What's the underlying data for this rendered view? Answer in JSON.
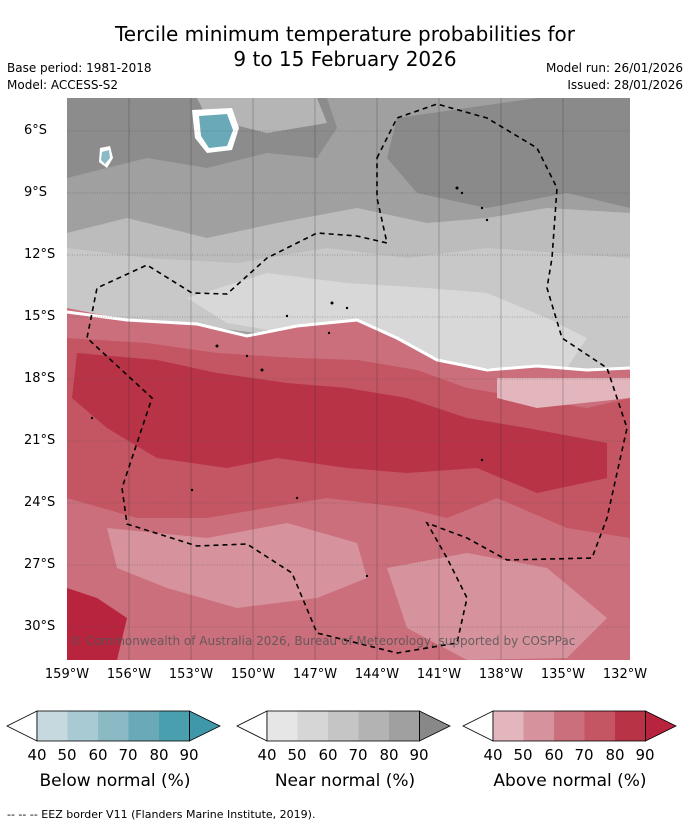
{
  "title_line1": "Tercile minimum temperature probabilities for",
  "title_line2": "9 to 15 February 2026",
  "base_period": "Base period: 1981-2018",
  "model": "Model: ACCESS-S2",
  "model_run": "Model run: 26/01/2026",
  "issued": "Issued: 28/01/2026",
  "lat_labels": [
    "6°S",
    "9°S",
    "12°S",
    "15°S",
    "18°S",
    "21°S",
    "24°S",
    "27°S",
    "30°S"
  ],
  "lon_labels": [
    "159°W",
    "156°W",
    "153°W",
    "150°W",
    "147°W",
    "144°W",
    "141°W",
    "138°W",
    "135°W",
    "132°W"
  ],
  "copyright": "© Commonwealth of Australia 2026, Bureau of Meteorology, supported by COSPPac",
  "legend": {
    "ticks": [
      "40",
      "50",
      "60",
      "70",
      "80",
      "90"
    ],
    "below_label": "Below normal (%)",
    "near_label": "Near normal (%)",
    "above_label": "Above normal (%)",
    "below_colors": [
      "#c5d9df",
      "#a8cbd3",
      "#8bb9c4",
      "#6aa9b7",
      "#4a9faf"
    ],
    "near_colors": [
      "#e6e6e6",
      "#d6d6d6",
      "#c5c5c5",
      "#b3b3b3",
      "#a0a0a0",
      "#888888"
    ],
    "above_colors": [
      "#e3b5bd",
      "#d6939d",
      "#cc6f7c",
      "#c45562",
      "#b83346",
      "#b8233e"
    ]
  },
  "footnote": "--  --  -- EEZ border V11 (Flanders Marine Institute, 2019)."
}
